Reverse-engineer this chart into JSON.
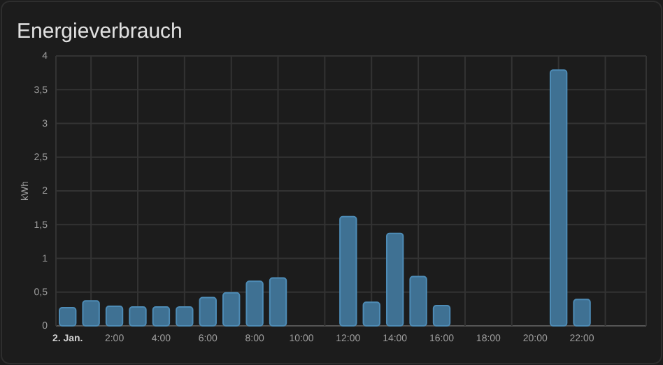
{
  "chart_data": {
    "type": "bar",
    "title": "Energieverbrauch",
    "ylabel": "kWh",
    "x": [
      0,
      1,
      2,
      3,
      4,
      5,
      6,
      7,
      8,
      9,
      12,
      13,
      14,
      15,
      16,
      21,
      22
    ],
    "values": [
      0.27,
      0.37,
      0.29,
      0.28,
      0.28,
      0.28,
      0.42,
      0.49,
      0.66,
      0.71,
      1.62,
      0.35,
      1.37,
      0.73,
      0.3,
      3.79,
      0.39
    ],
    "color": "#3f7193",
    "xlim": [
      -0.5,
      24.75
    ],
    "xticks": [
      {
        "value": 0,
        "label": "2. Jan."
      },
      {
        "value": 1,
        "label": null
      },
      {
        "value": 2,
        "label": "2:00"
      },
      {
        "value": 3,
        "label": null
      },
      {
        "value": 4,
        "label": "4:00"
      },
      {
        "value": 5,
        "label": null
      },
      {
        "value": 6,
        "label": "6:00"
      },
      {
        "value": 7,
        "label": null
      },
      {
        "value": 8,
        "label": "8:00"
      },
      {
        "value": 9,
        "label": null
      },
      {
        "value": 10,
        "label": "10:00"
      },
      {
        "value": 11,
        "label": null
      },
      {
        "value": 12,
        "label": "12:00"
      },
      {
        "value": 13,
        "label": null
      },
      {
        "value": 14,
        "label": "14:00"
      },
      {
        "value": 15,
        "label": null
      },
      {
        "value": 16,
        "label": "16:00"
      },
      {
        "value": 17,
        "label": null
      },
      {
        "value": 18,
        "label": "18:00"
      },
      {
        "value": 19,
        "label": null
      },
      {
        "value": 20,
        "label": "20:00"
      },
      {
        "value": 21,
        "label": null
      },
      {
        "value": 22,
        "label": "22:00"
      },
      {
        "value": 23,
        "label": null
      }
    ],
    "ylim": [
      0,
      4
    ],
    "yticks": [
      0,
      {
        "value": 0.5,
        "label": "0,5"
      },
      1,
      {
        "value": 1.5,
        "label": "1,5"
      },
      2,
      {
        "value": 2.5,
        "label": "2,5"
      },
      3,
      {
        "value": 3.5,
        "label": "3,5"
      },
      4
    ],
    "grid": true
  }
}
